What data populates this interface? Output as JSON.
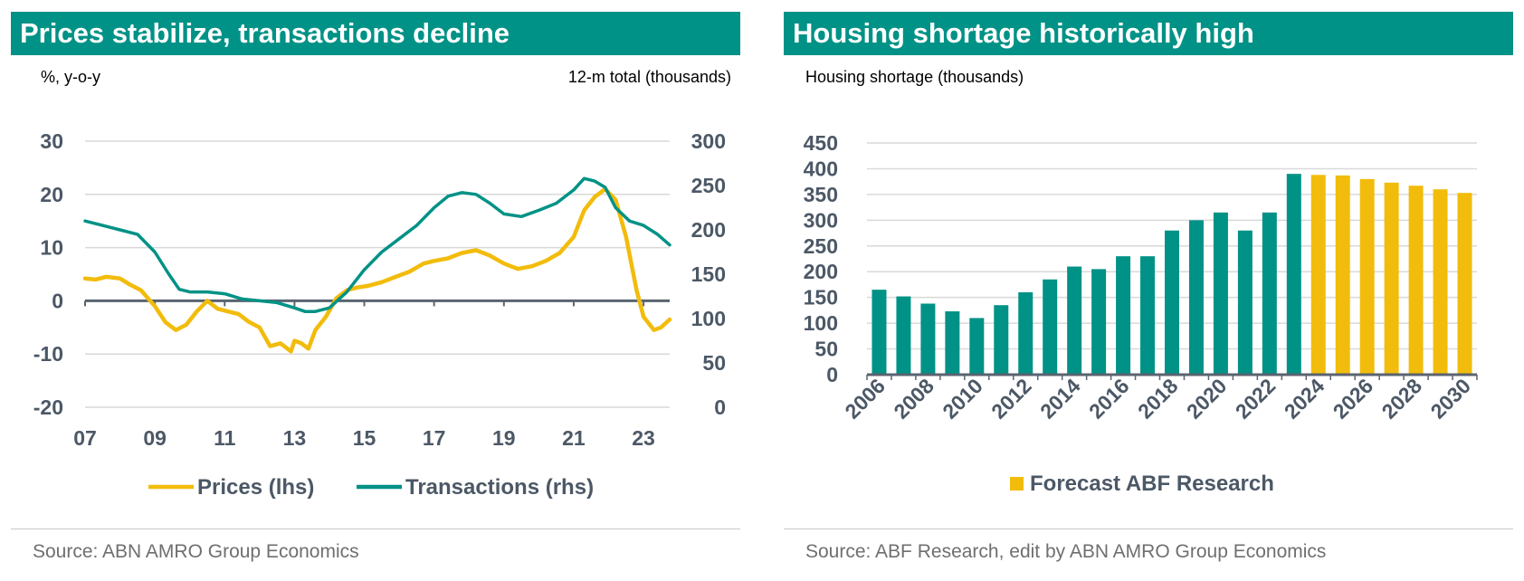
{
  "panels": {
    "left": {
      "title": "Prices stabilize, transactions decline",
      "unit_left": "%, y-o-y",
      "unit_right": "12-m total (thousands)",
      "source": "Source: ABN AMRO Group Economics"
    },
    "right": {
      "title": "Housing shortage historically high",
      "unit_left": "Housing shortage (thousands)",
      "source": "Source: ABF Research, edit by ABN AMRO Group Economics"
    }
  },
  "colors": {
    "teal": "#009286",
    "yellow": "#f2bc0c",
    "axis_text": "#4c5866",
    "grid": "#d9d9d9",
    "axis_line": "#5a6470"
  },
  "chart_data": [
    {
      "type": "line",
      "x_tick_labels": [
        "07",
        "09",
        "11",
        "13",
        "15",
        "17",
        "19",
        "21",
        "23"
      ],
      "x_range": [
        2007.0,
        2023.75
      ],
      "y_left_range": [
        -20,
        30
      ],
      "y_left_ticks": [
        "-20",
        "-10",
        "0",
        "10",
        "20",
        "30"
      ],
      "y_right_range": [
        0,
        300
      ],
      "y_right_ticks": [
        "0",
        "50",
        "100",
        "150",
        "200",
        "250",
        "300"
      ],
      "grid": true,
      "legend_position": "bottom",
      "series": [
        {
          "name": "Prices (lhs)",
          "axis": "left",
          "x": [
            2007.0,
            2007.3,
            2007.6,
            2008.0,
            2008.3,
            2008.6,
            2009.0,
            2009.3,
            2009.6,
            2009.9,
            2010.2,
            2010.5,
            2010.8,
            2011.1,
            2011.4,
            2011.7,
            2012.0,
            2012.3,
            2012.6,
            2012.9,
            2013.0,
            2013.2,
            2013.4,
            2013.6,
            2013.9,
            2014.2,
            2014.5,
            2014.8,
            2015.1,
            2015.5,
            2015.9,
            2016.3,
            2016.7,
            2017.0,
            2017.4,
            2017.8,
            2018.2,
            2018.6,
            2019.0,
            2019.4,
            2019.8,
            2020.2,
            2020.6,
            2021.0,
            2021.3,
            2021.6,
            2021.9,
            2022.2,
            2022.5,
            2022.8,
            2023.0,
            2023.3,
            2023.5,
            2023.75
          ],
          "y": [
            4.2,
            4.0,
            4.5,
            4.2,
            3.0,
            2.0,
            -1.0,
            -4.0,
            -5.5,
            -4.5,
            -2.0,
            0.0,
            -1.5,
            -2.0,
            -2.5,
            -4.0,
            -5.0,
            -8.5,
            -8.0,
            -9.5,
            -7.5,
            -8.0,
            -9.0,
            -5.5,
            -3.0,
            0.5,
            2.0,
            2.5,
            2.8,
            3.5,
            4.5,
            5.5,
            7.0,
            7.5,
            8.0,
            9.0,
            9.5,
            8.5,
            7.0,
            6.0,
            6.5,
            7.5,
            9.0,
            12.0,
            17.0,
            19.5,
            21.0,
            19.0,
            12.0,
            2.0,
            -3.0,
            -5.5,
            -5.0,
            -3.5
          ]
        },
        {
          "name": "Transactions (rhs)",
          "axis": "right",
          "x": [
            2007.0,
            2007.5,
            2008.0,
            2008.5,
            2009.0,
            2009.4,
            2009.7,
            2010.0,
            2010.5,
            2011.0,
            2011.5,
            2012.0,
            2012.5,
            2013.0,
            2013.3,
            2013.6,
            2014.0,
            2014.5,
            2015.0,
            2015.5,
            2016.0,
            2016.5,
            2017.0,
            2017.4,
            2017.8,
            2018.2,
            2018.6,
            2019.0,
            2019.5,
            2020.0,
            2020.5,
            2021.0,
            2021.3,
            2021.6,
            2021.9,
            2022.2,
            2022.6,
            2023.0,
            2023.4,
            2023.75
          ],
          "y": [
            210,
            205,
            200,
            195,
            175,
            150,
            133,
            130,
            130,
            128,
            122,
            120,
            118,
            112,
            108,
            108,
            112,
            130,
            155,
            175,
            190,
            205,
            225,
            238,
            242,
            240,
            230,
            218,
            215,
            222,
            230,
            245,
            258,
            255,
            248,
            225,
            210,
            205,
            195,
            183
          ]
        }
      ]
    },
    {
      "type": "bar",
      "categories": [
        "2006",
        "2007",
        "2008",
        "2009",
        "2010",
        "2011",
        "2012",
        "2013",
        "2014",
        "2015",
        "2016",
        "2017",
        "2018",
        "2019",
        "2020",
        "2021",
        "2022",
        "2023",
        "2024",
        "2025",
        "2026",
        "2027",
        "2028",
        "2029",
        "2030"
      ],
      "x_tick_labels": [
        "2006",
        "2008",
        "2010",
        "2012",
        "2014",
        "2016",
        "2018",
        "2020",
        "2022",
        "2024",
        "2026",
        "2028",
        "2030"
      ],
      "values": [
        165,
        152,
        138,
        123,
        110,
        135,
        160,
        185,
        210,
        205,
        230,
        230,
        280,
        300,
        315,
        280,
        315,
        390,
        388,
        387,
        380,
        373,
        367,
        360,
        353
      ],
      "forecast_from": "2024",
      "ylim": [
        0,
        450
      ],
      "y_ticks": [
        "0",
        "50",
        "100",
        "150",
        "200",
        "250",
        "300",
        "350",
        "400",
        "450"
      ],
      "grid": true,
      "legend": [
        "Forecast ABF Research"
      ],
      "legend_position": "bottom"
    }
  ]
}
